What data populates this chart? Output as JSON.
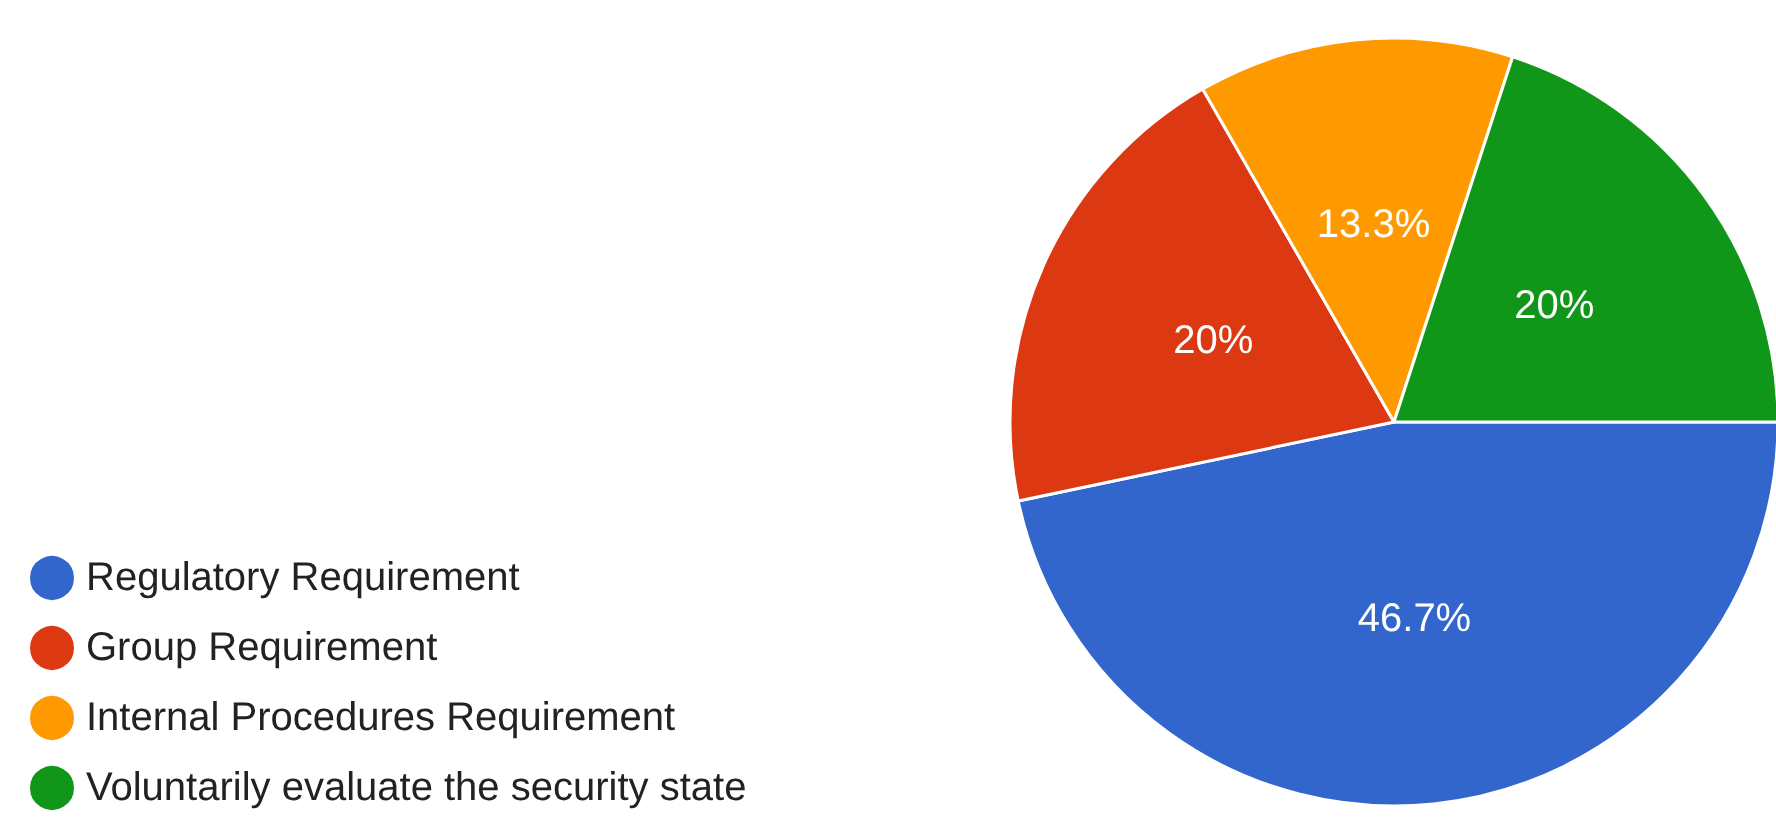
{
  "chart_data": {
    "type": "pie",
    "categories": [
      "Regulatory Requirement",
      "Group Requirement",
      "Internal Procedures Requirement",
      "Voluntarily evaluate the security state"
    ],
    "values": [
      46.7,
      20,
      13.3,
      20
    ],
    "colors": [
      "#3366cc",
      "#dc3912",
      "#ff9900",
      "#109618"
    ],
    "value_labels": [
      "46.7%",
      "20%",
      "13.3%",
      "20%"
    ],
    "legend": "bottom left"
  }
}
